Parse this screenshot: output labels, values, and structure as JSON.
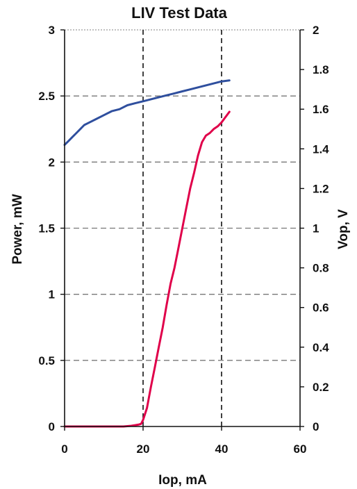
{
  "chart_data": {
    "type": "line",
    "title": "LIV Test Data",
    "xlabel": "Iop, mA",
    "ylabel": "Power, mW",
    "y2label": "Vop, V",
    "xlim": [
      0,
      60
    ],
    "ylim": [
      0,
      3
    ],
    "y2lim": [
      0,
      2
    ],
    "x_ticks": [
      "0",
      "20",
      "40",
      "60"
    ],
    "y_ticks": [
      "0",
      "0.5",
      "1",
      "1.5",
      "2",
      "2.5",
      "3"
    ],
    "y2_ticks": [
      "0",
      "0.2",
      "0.4",
      "0.6",
      "0.8",
      "1",
      "1.2",
      "1.4",
      "1.6",
      "1.8",
      "2"
    ],
    "x_tick_values": [
      0,
      20,
      40,
      60
    ],
    "y_tick_values": [
      0,
      0.5,
      1,
      1.5,
      2,
      2.5,
      3
    ],
    "y2_tick_values": [
      0,
      0.2,
      0.4,
      0.6,
      0.8,
      1.0,
      1.2,
      1.4,
      1.6,
      1.8,
      2.0
    ],
    "grid": {
      "horizontal": "dashed",
      "vertical_dashed_at_x": [
        20,
        40
      ]
    },
    "legend": "none",
    "series": [
      {
        "axis": "left",
        "color": "#e0004a",
        "x": [
          0,
          5,
          10,
          15,
          17,
          18,
          19,
          19.5,
          20,
          21,
          22,
          23,
          24,
          25,
          26,
          27,
          28,
          29,
          30,
          31,
          32,
          33,
          34,
          35,
          36,
          37,
          38,
          39,
          40,
          41,
          42
        ],
        "y": [
          0,
          0,
          0,
          0,
          0.005,
          0.01,
          0.015,
          0.02,
          0.05,
          0.14,
          0.3,
          0.45,
          0.6,
          0.75,
          0.92,
          1.08,
          1.2,
          1.35,
          1.5,
          1.65,
          1.8,
          1.92,
          2.05,
          2.15,
          2.2,
          2.22,
          2.25,
          2.27,
          2.3,
          2.34,
          2.38
        ]
      },
      {
        "axis": "right",
        "color": "#2f4f9e",
        "x": [
          0,
          1,
          2,
          3,
          4,
          5,
          6,
          8,
          10,
          12,
          14,
          16,
          18,
          20,
          22,
          24,
          26,
          28,
          30,
          32,
          34,
          36,
          38,
          40,
          42
        ],
        "y": [
          1.42,
          1.44,
          1.46,
          1.48,
          1.5,
          1.52,
          1.53,
          1.55,
          1.57,
          1.59,
          1.6,
          1.62,
          1.63,
          1.64,
          1.65,
          1.66,
          1.67,
          1.68,
          1.69,
          1.7,
          1.71,
          1.72,
          1.73,
          1.74,
          1.745
        ]
      }
    ]
  }
}
